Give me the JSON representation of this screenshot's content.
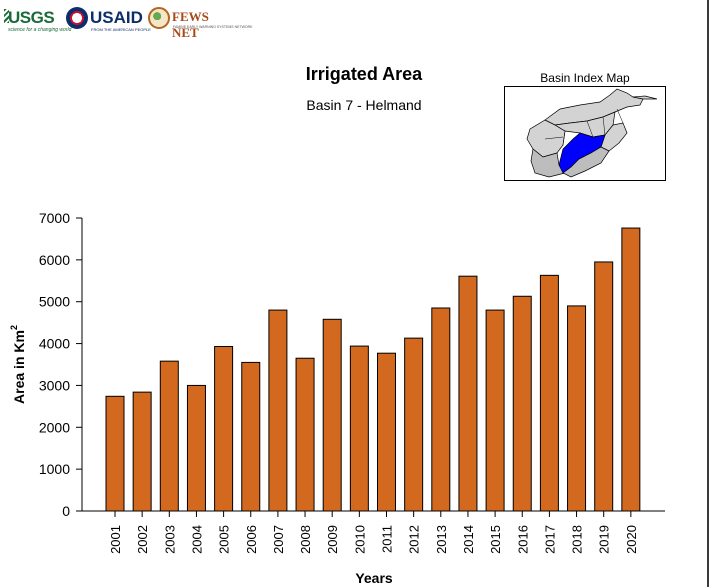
{
  "logos": {
    "usgs": {
      "name": "USGS",
      "tagline": "science for a changing world"
    },
    "usaid": {
      "name": "USAID",
      "tagline": "FROM THE AMERICAN PEOPLE"
    },
    "fews": {
      "name": "FEWS NET",
      "tagline": "FAMINE EARLY WARNING SYSTEMS NETWORK"
    }
  },
  "inset": {
    "title": "Basin Index Map",
    "colors": {
      "basin": "#0000ff",
      "other": "#d3d3d3",
      "dark": "#bdbdbd",
      "outline": "#000000"
    }
  },
  "chart_data": {
    "type": "bar",
    "title": "Irrigated Area",
    "subtitle": "Basin 7 - Helmand",
    "xlabel": "Years",
    "ylabel": "Area in Km",
    "ylabel_superscript": "2",
    "ylim": [
      0,
      7000
    ],
    "yticks": [
      0,
      1000,
      2000,
      3000,
      4000,
      5000,
      6000,
      7000
    ],
    "grid": false,
    "bar_color": "#d2691e",
    "categories": [
      "2001",
      "2002",
      "2003",
      "2004",
      "2005",
      "2006",
      "2007",
      "2008",
      "2009",
      "2010",
      "2011",
      "2012",
      "2013",
      "2014",
      "2015",
      "2016",
      "2017",
      "2018",
      "2019",
      "2020"
    ],
    "values": [
      2740,
      2840,
      3580,
      3000,
      3930,
      3550,
      4800,
      3650,
      4580,
      3940,
      3770,
      4130,
      4850,
      5610,
      4800,
      5130,
      5630,
      4900,
      5950,
      6760
    ]
  }
}
